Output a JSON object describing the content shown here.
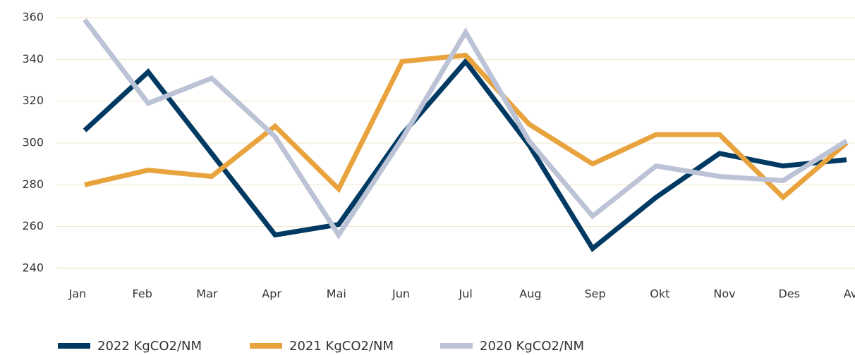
{
  "chart_data": {
    "type": "line",
    "categories": [
      "Jan",
      "Feb",
      "Mar",
      "Apr",
      "Mai",
      "Jun",
      "Jul",
      "Aug",
      "Sep",
      "Okt",
      "Nov",
      "Des",
      "Ave"
    ],
    "series": [
      {
        "name": "2022 KgCO2/NM",
        "color": "#003a63",
        "values": [
          306,
          334,
          295,
          256,
          261,
          304,
          339,
          299,
          249.5,
          274,
          295,
          289,
          292
        ]
      },
      {
        "name": "2021 KgCO2/NM",
        "color": "#e8a33d",
        "values": [
          280,
          287,
          284,
          308,
          278,
          339,
          342,
          309,
          290,
          304,
          304,
          274,
          300
        ]
      },
      {
        "name": "2020 KgCO2/NM",
        "color": "#bcc3d6",
        "values": [
          359,
          319,
          331,
          303,
          256,
          302,
          353,
          301,
          265,
          289,
          284,
          282,
          301
        ]
      }
    ],
    "ylim": [
      240,
      360
    ],
    "yticks": [
      240,
      260,
      280,
      300,
      320,
      340,
      360
    ],
    "grid": true,
    "legend": "bottom"
  }
}
